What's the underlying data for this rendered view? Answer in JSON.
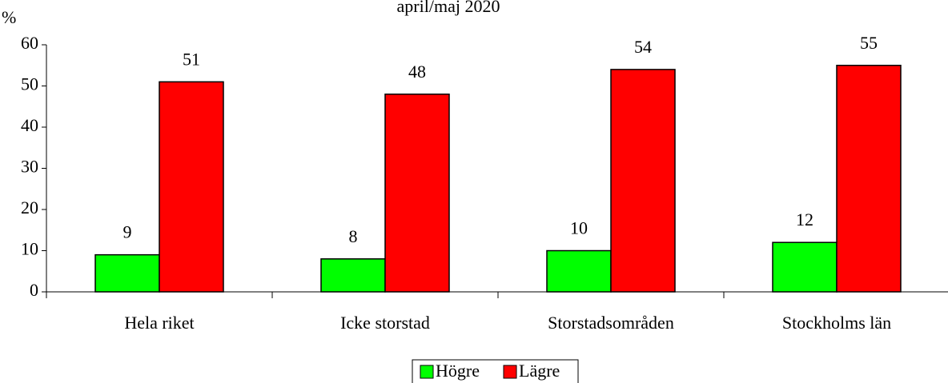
{
  "chart_data": {
    "type": "bar",
    "title": "april/maj 2020",
    "y_label": "%",
    "categories": [
      "Hela riket",
      "Icke storstad",
      "Storstadsområden",
      "Stockholms län"
    ],
    "series": [
      {
        "name": "Högre",
        "color": "#00ff00",
        "values": [
          9,
          8,
          10,
          12
        ]
      },
      {
        "name": "Lägre",
        "color": "#ff0000",
        "values": [
          51,
          48,
          54,
          55
        ]
      }
    ],
    "ylim": [
      0,
      60
    ],
    "yticks": [
      0,
      10,
      20,
      30,
      40,
      50,
      60
    ],
    "grid": false,
    "legend": "bottom"
  }
}
